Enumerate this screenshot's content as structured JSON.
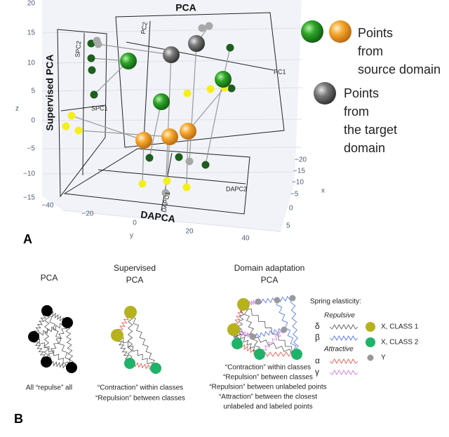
{
  "panel_a": {
    "label": "A",
    "z_axis": {
      "title": "z",
      "ticks": [
        "20",
        "15",
        "10",
        "5",
        "0",
        "−5",
        "−10",
        "−15"
      ]
    },
    "y_axis": {
      "title": "y",
      "ticks": [
        "−40",
        "−20",
        "0",
        "20",
        "40"
      ]
    },
    "x_axis": {
      "title": "x",
      "ticks": [
        "−20",
        "−15",
        "−10",
        "−5",
        "0",
        "5"
      ]
    },
    "planes": {
      "pca": {
        "title": "PCA",
        "axis1": "PC1",
        "axis2": "PC2"
      },
      "supervised": {
        "title": "Supervised PCA",
        "axis1": "SPC1",
        "axis2": "SPC2"
      },
      "dapca": {
        "title": "DAPCA",
        "axis1": "DAPC1",
        "axis2": "DAPC2"
      }
    },
    "legend": {
      "source": [
        "Points",
        "from",
        "source domain"
      ],
      "target": [
        "Points",
        "from",
        "the target",
        "domain"
      ]
    }
  },
  "panel_b": {
    "label": "B",
    "pca": {
      "title": [
        "PCA"
      ],
      "caption": [
        "All “repulse” all"
      ]
    },
    "supervised": {
      "title": [
        "Supervised",
        "PCA"
      ],
      "caption": [
        "“Contraction” within classes",
        "“Repulsion” between classes"
      ]
    },
    "dapca": {
      "title": [
        "Domain adaptation",
        "PCA"
      ],
      "caption": [
        "“Contraction” within classes",
        "“Repulsion” between classes",
        "“Repulsion” between unlabeled points",
        "“Attraction” between the closest",
        "unlabeled and labeled points"
      ]
    },
    "springs": {
      "title": "Spring elasticity:",
      "repulsive": "Repulsive",
      "delta": "δ",
      "beta": "β",
      "attractive": "Attractive",
      "alpha": "α",
      "gamma": "γ"
    },
    "points": {
      "class1": "X, CLASS 1",
      "class2": "X, CLASS 2",
      "y": "Y"
    }
  }
}
